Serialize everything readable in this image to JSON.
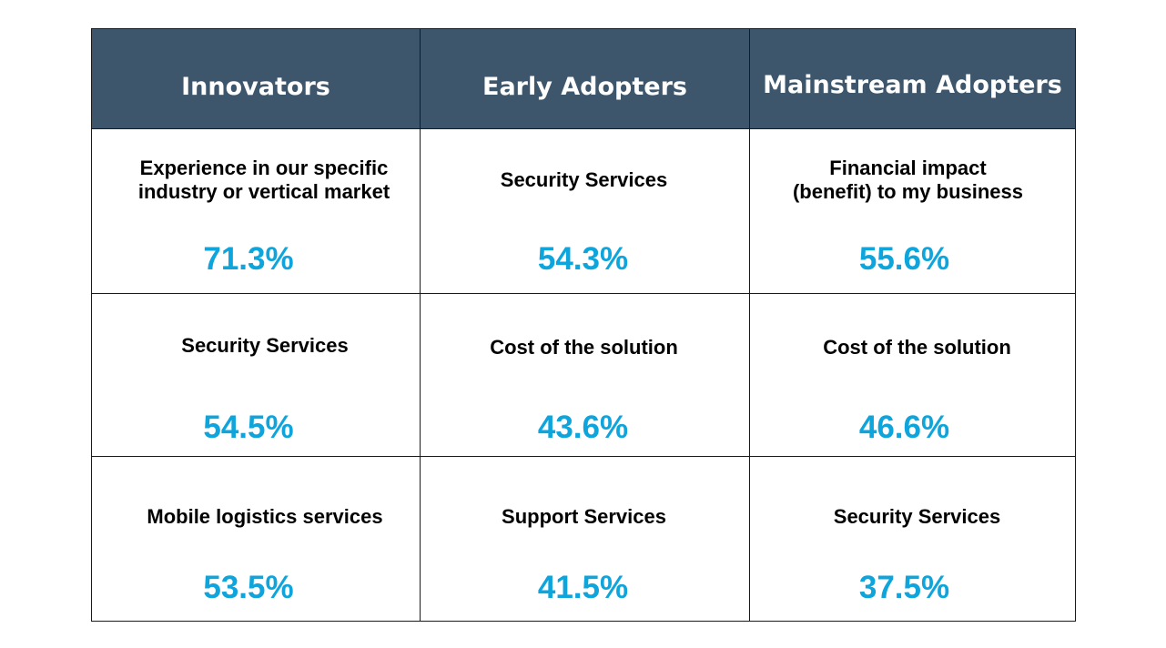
{
  "chart_data": {
    "type": "table",
    "columns": [
      "Innovators",
      "Early Adopters",
      "Mainstream Adopters"
    ],
    "rows": [
      [
        {
          "label": "Experience in our specific\nindustry or vertical market",
          "value": "71.3%"
        },
        {
          "label": "Security Services",
          "value": "54.3%"
        },
        {
          "label": "Financial impact\n(benefit) to my business",
          "value": "55.6%"
        }
      ],
      [
        {
          "label": "Security Services",
          "value": "54.5%"
        },
        {
          "label": "Cost of the solution",
          "value": "43.6%"
        },
        {
          "label": "Cost of the solution",
          "value": "46.6%"
        }
      ],
      [
        {
          "label": "Mobile logistics services",
          "value": "53.5%"
        },
        {
          "label": "Support Services",
          "value": "41.5%"
        },
        {
          "label": "Security Services",
          "value": "37.5%"
        }
      ]
    ],
    "colors": {
      "header_background": "#3e566b",
      "header_text": "#ffffff",
      "value_text": "#0ea5dc",
      "label_text": "#000000",
      "border": "#1a1a1a"
    }
  }
}
